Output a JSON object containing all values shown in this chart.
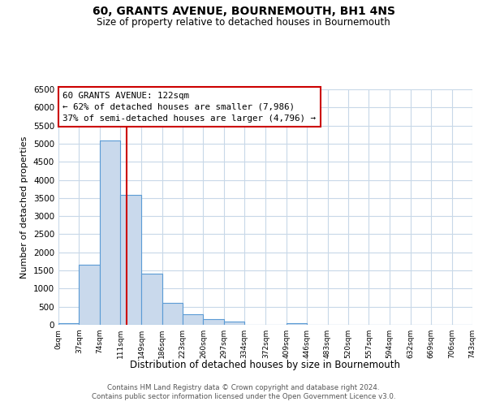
{
  "title": "60, GRANTS AVENUE, BOURNEMOUTH, BH1 4NS",
  "subtitle": "Size of property relative to detached houses in Bournemouth",
  "xlabel": "Distribution of detached houses by size in Bournemouth",
  "ylabel": "Number of detached properties",
  "bins": [
    0,
    37,
    74,
    111,
    149,
    186,
    223,
    260,
    297,
    334,
    372,
    409,
    446,
    483,
    520,
    557,
    594,
    632,
    669,
    706,
    743
  ],
  "counts": [
    50,
    1650,
    5080,
    3580,
    1420,
    610,
    290,
    155,
    80,
    0,
    0,
    50,
    0,
    0,
    0,
    0,
    0,
    0,
    0,
    0
  ],
  "bar_color": "#c9d9ec",
  "bar_edge_color": "#5b9bd5",
  "property_line_x": 122,
  "property_line_color": "#cc0000",
  "annotation_title": "60 GRANTS AVENUE: 122sqm",
  "annotation_line1": "← 62% of detached houses are smaller (7,986)",
  "annotation_line2": "37% of semi-detached houses are larger (4,796) →",
  "annotation_box_color": "#cc0000",
  "ylim": [
    0,
    6500
  ],
  "yticks": [
    0,
    500,
    1000,
    1500,
    2000,
    2500,
    3000,
    3500,
    4000,
    4500,
    5000,
    5500,
    6000,
    6500
  ],
  "tick_labels": [
    "0sqm",
    "37sqm",
    "74sqm",
    "111sqm",
    "149sqm",
    "186sqm",
    "223sqm",
    "260sqm",
    "297sqm",
    "334sqm",
    "372sqm",
    "409sqm",
    "446sqm",
    "483sqm",
    "520sqm",
    "557sqm",
    "594sqm",
    "632sqm",
    "669sqm",
    "706sqm",
    "743sqm"
  ],
  "footer1": "Contains HM Land Registry data © Crown copyright and database right 2024.",
  "footer2": "Contains public sector information licensed under the Open Government Licence v3.0.",
  "background_color": "#ffffff",
  "grid_color": "#c8d8e8"
}
